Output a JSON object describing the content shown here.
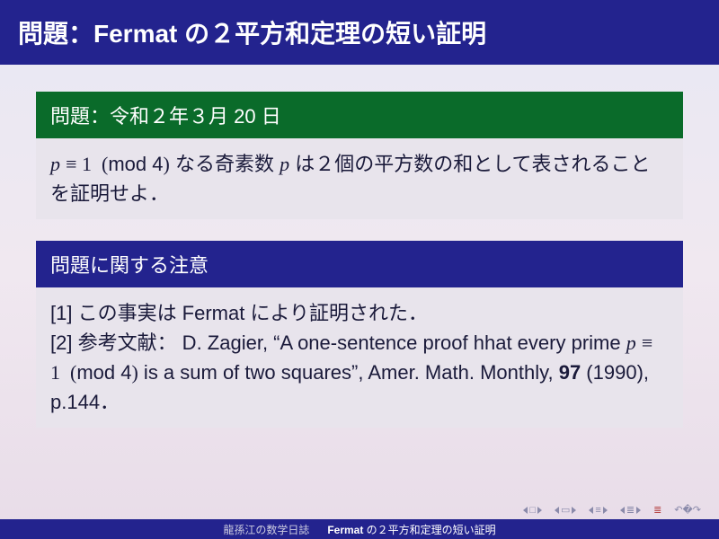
{
  "title": "問題：Fermat の２平方和定理の短い証明",
  "block1": {
    "header": "問題：令和２年３月 20 日",
    "body_html": "<span class='math-i'>p</span> <span class='math-r'>≡ 1&nbsp;&nbsp;(</span>mod 4<span class='math-r'>)</span> なる奇素数 <span class='math-i'>p</span> は２個の平方数の和として表されることを証明せよ．"
  },
  "block2": {
    "header": "問題に関する注意",
    "body_html": "[1] この事実は Fermat により証明された．<br>[2] 参考文献： D. Zagier, “A one-sentence proof hhat every prime <span class='math-i'>p</span> <span class='math-r'>≡ 1&nbsp;&nbsp;(</span>mod 4<span class='math-r'>)</span> is a sum of two squares”, Amer. Math. Monthly, <span class='bold'>97</span> (1990), p.144．"
  },
  "footer": {
    "left": "龍孫江の数学日誌",
    "right_html": "<b>Fermat</b> の２平方和定理の短い証明"
  },
  "colors": {
    "title_bg": "#23238e",
    "green": "#0a6b2a",
    "blue": "#23238e",
    "body_bg": "#e8e4ec"
  }
}
